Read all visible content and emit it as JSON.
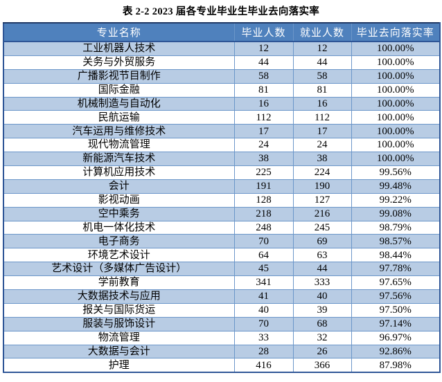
{
  "title": "表 2-2 2023 届各专业毕业生毕业去向落实率",
  "table": {
    "columns": [
      "专业名称",
      "毕业人数",
      "就业人数",
      "毕业去向落实率"
    ],
    "rows": [
      [
        "工业机器人技术",
        "12",
        "12",
        "100.00%"
      ],
      [
        "关务与外贸服务",
        "44",
        "44",
        "100.00%"
      ],
      [
        "广播影视节目制作",
        "58",
        "58",
        "100.00%"
      ],
      [
        "国际金融",
        "81",
        "81",
        "100.00%"
      ],
      [
        "机械制造与自动化",
        "16",
        "16",
        "100.00%"
      ],
      [
        "民航运输",
        "112",
        "112",
        "100.00%"
      ],
      [
        "汽车运用与维修技术",
        "17",
        "17",
        "100.00%"
      ],
      [
        "现代物流管理",
        "24",
        "24",
        "100.00%"
      ],
      [
        "新能源汽车技术",
        "38",
        "38",
        "100.00%"
      ],
      [
        "计算机应用技术",
        "225",
        "224",
        "99.56%"
      ],
      [
        "会计",
        "191",
        "190",
        "99.48%"
      ],
      [
        "影视动画",
        "128",
        "127",
        "99.22%"
      ],
      [
        "空中乘务",
        "218",
        "216",
        "99.08%"
      ],
      [
        "机电一体化技术",
        "248",
        "245",
        "98.79%"
      ],
      [
        "电子商务",
        "70",
        "69",
        "98.57%"
      ],
      [
        "环境艺术设计",
        "64",
        "63",
        "98.44%"
      ],
      [
        "艺术设计（多媒体广告设计）",
        "45",
        "44",
        "97.78%"
      ],
      [
        "学前教育",
        "341",
        "333",
        "97.65%"
      ],
      [
        "大数据技术与应用",
        "41",
        "40",
        "97.56%"
      ],
      [
        "报关与国际货运",
        "40",
        "39",
        "97.50%"
      ],
      [
        "服装与服饰设计",
        "70",
        "68",
        "97.14%"
      ],
      [
        "物流管理",
        "33",
        "32",
        "96.97%"
      ],
      [
        "大数据与会计",
        "28",
        "26",
        "92.86%"
      ],
      [
        "护理",
        "416",
        "366",
        "87.98%"
      ]
    ]
  },
  "colors": {
    "header_bg": "#4F81BD",
    "header_text": "#FFFFFF",
    "band_bg": "#B8CCE4",
    "inner_border": "#6B96C9",
    "outer_border": "#2E5596",
    "outer_top_border": "#1F3864"
  }
}
